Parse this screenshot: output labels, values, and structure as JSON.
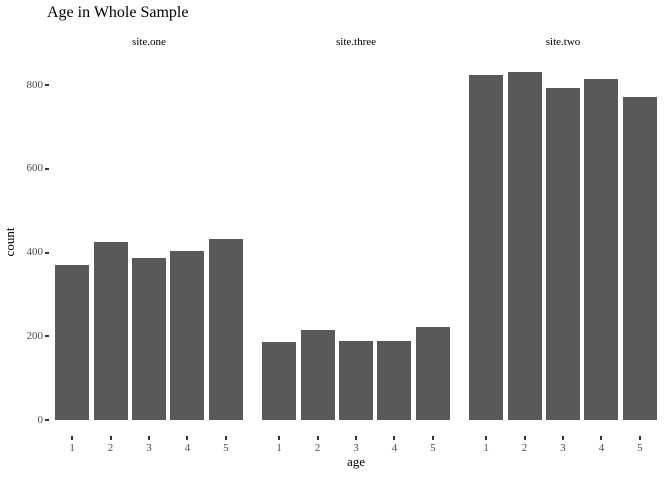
{
  "chart_data": {
    "type": "bar",
    "title": "Age in Whole Sample",
    "xlabel": "age",
    "ylabel": "count",
    "categories": [
      "1",
      "2",
      "3",
      "4",
      "5"
    ],
    "facets": [
      {
        "label": "site.one",
        "values": [
          370,
          425,
          388,
          403,
          432
        ]
      },
      {
        "label": "site.three",
        "values": [
          187,
          215,
          189,
          188,
          221
        ]
      },
      {
        "label": "site.two",
        "values": [
          823,
          832,
          792,
          814,
          771
        ]
      }
    ],
    "y_ticks": [
      0,
      200,
      400,
      600,
      800
    ],
    "ylim": [
      0,
      871
    ],
    "bar_color": "#595959",
    "tick_color": "#333333",
    "axis_text_color": "#4d4d4d",
    "grid": "off",
    "legend": "none"
  }
}
